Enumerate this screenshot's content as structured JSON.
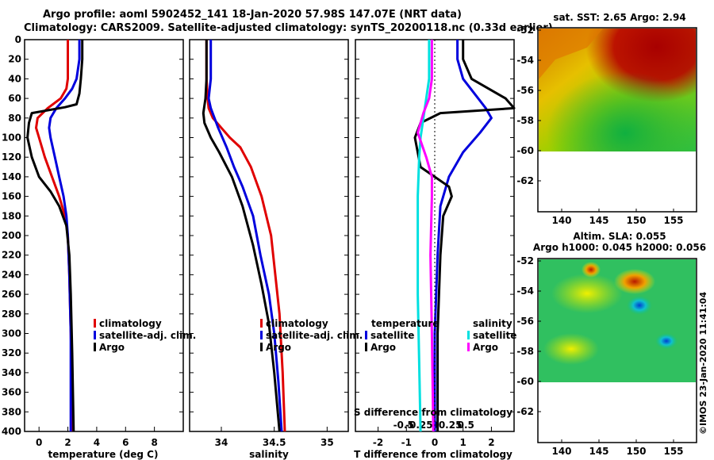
{
  "title": {
    "line1": "Argo profile: aoml 5902452_141 18-Jan-2020 57.98S 147.07E (NRT data)",
    "line2": "Climatology: CARS2009. Satellite-adjusted climatology: synTS_20200118.nc (0.33d earlier)"
  },
  "colors": {
    "climatology": "#e00000",
    "satellite": "#0000dd",
    "argo": "#000000",
    "sal_satellite": "#00e0e0",
    "sal_argo": "#ff00ff"
  },
  "chart_data": [
    {
      "type": "line",
      "panel": "temperature",
      "xlabel": "temperature (deg C)",
      "ylabel": "",
      "xlim": [
        -1,
        10
      ],
      "ylim": [
        400,
        0
      ],
      "xticks": [
        "0",
        "2",
        "4",
        "6",
        "8"
      ],
      "yticks": [
        "0",
        "20",
        "40",
        "60",
        "80",
        "100",
        "120",
        "140",
        "160",
        "180",
        "200",
        "220",
        "240",
        "260",
        "280",
        "300",
        "320",
        "340",
        "360",
        "380",
        "400"
      ],
      "legend": [
        "climatology",
        "satellite-adj. clim.",
        "Argo"
      ],
      "series": [
        {
          "name": "climatology",
          "color_key": "climatology",
          "x": [
            2.0,
            2.0,
            2.0,
            1.9,
            1.5,
            0.6,
            -0.1,
            -0.2,
            0.0,
            0.4,
            0.9,
            1.4,
            1.8,
            2.0,
            2.1,
            2.2,
            2.3,
            2.3
          ],
          "y": [
            0,
            20,
            40,
            50,
            60,
            70,
            80,
            90,
            100,
            120,
            140,
            160,
            180,
            200,
            240,
            300,
            350,
            400
          ]
        },
        {
          "name": "satellite-adj. clim.",
          "color_key": "satellite",
          "x": [
            2.8,
            2.8,
            2.6,
            2.3,
            1.8,
            1.2,
            0.8,
            0.7,
            0.8,
            1.1,
            1.4,
            1.7,
            1.9,
            2.0,
            2.1,
            2.2,
            2.2,
            2.2
          ],
          "y": [
            0,
            20,
            40,
            50,
            60,
            70,
            80,
            90,
            100,
            120,
            140,
            160,
            180,
            200,
            240,
            300,
            350,
            400
          ]
        },
        {
          "name": "Argo",
          "color_key": "argo",
          "x": [
            3.0,
            3.0,
            2.9,
            2.8,
            2.6,
            1.8,
            -0.5,
            -0.7,
            -0.8,
            -0.5,
            0.0,
            0.8,
            1.4,
            1.9,
            2.1,
            2.2,
            2.3,
            2.4
          ],
          "y": [
            0,
            20,
            40,
            55,
            66,
            69,
            75,
            85,
            100,
            120,
            140,
            155,
            170,
            190,
            220,
            260,
            320,
            400
          ]
        }
      ]
    },
    {
      "type": "line",
      "panel": "salinity",
      "xlabel": "salinity",
      "xlim": [
        33.7,
        35.2
      ],
      "ylim": [
        400,
        0
      ],
      "xticks": [
        "34",
        "34.5",
        "35"
      ],
      "legend": [
        "climatology",
        "satellite-adj. clim.",
        "Argo"
      ],
      "series": [
        {
          "name": "climatology",
          "color_key": "climatology",
          "x": [
            33.86,
            33.86,
            33.87,
            33.88,
            33.92,
            34.0,
            34.08,
            34.18,
            34.28,
            34.38,
            34.47,
            34.51,
            34.55,
            34.58,
            34.6
          ],
          "y": [
            0,
            40,
            60,
            70,
            80,
            90,
            100,
            110,
            130,
            160,
            200,
            240,
            280,
            340,
            400
          ]
        },
        {
          "name": "satellite-adj. clim.",
          "color_key": "satellite",
          "x": [
            33.9,
            33.9,
            33.88,
            33.9,
            33.97,
            34.05,
            34.12,
            34.2,
            34.3,
            34.37,
            34.45,
            34.5,
            34.54,
            34.57
          ],
          "y": [
            0,
            40,
            60,
            70,
            90,
            110,
            130,
            150,
            180,
            220,
            260,
            300,
            350,
            400
          ]
        },
        {
          "name": "Argo",
          "color_key": "argo",
          "x": [
            33.86,
            33.86,
            33.85,
            33.83,
            33.84,
            33.9,
            33.98,
            34.1,
            34.2,
            34.3,
            34.38,
            34.45,
            34.5,
            34.55
          ],
          "y": [
            0,
            40,
            60,
            75,
            85,
            100,
            115,
            140,
            170,
            210,
            250,
            290,
            340,
            400
          ]
        }
      ]
    },
    {
      "type": "line",
      "panel": "difference",
      "xlabel": "T difference from climatology",
      "xlabel2": "S difference from climatology",
      "xlim": [
        -2.8,
        2.8
      ],
      "ylim": [
        400,
        0
      ],
      "xticks": [
        "-2",
        "-1",
        "0",
        "1",
        "2"
      ],
      "xticks2": [
        "-0.5",
        "-0.25",
        "0",
        "0.25",
        "0.5"
      ],
      "legend_temperature_title": "temperature",
      "legend_temperature": [
        "satellite",
        "Argo"
      ],
      "legend_salinity_title": "salinity",
      "legend_salinity": [
        "satellite",
        "Argo"
      ],
      "series": [
        {
          "name": "T satellite",
          "color_key": "satellite",
          "x": [
            0.8,
            0.8,
            1.0,
            1.4,
            1.8,
            2.0,
            1.6,
            1.0,
            0.5,
            0.2,
            0.1,
            0.0,
            0.0
          ],
          "y": [
            0,
            20,
            40,
            55,
            70,
            80,
            95,
            115,
            140,
            170,
            220,
            300,
            400
          ]
        },
        {
          "name": "T Argo",
          "color_key": "argo",
          "x": [
            1.0,
            1.0,
            1.3,
            2.5,
            2.8,
            0.2,
            -0.5,
            -0.7,
            -0.5,
            0.5,
            0.6,
            0.3,
            0.2,
            0.1,
            0.1
          ],
          "y": [
            0,
            20,
            40,
            60,
            70,
            75,
            85,
            100,
            130,
            150,
            160,
            180,
            220,
            300,
            400
          ]
        },
        {
          "name": "S satellite",
          "color_key": "sal_satellite",
          "x": [
            -0.2,
            -0.2,
            -0.3,
            -0.4,
            -0.5,
            -0.55,
            -0.6,
            -0.6,
            -0.6,
            -0.55,
            -0.5
          ],
          "y": [
            0,
            40,
            60,
            80,
            100,
            120,
            160,
            200,
            260,
            330,
            400
          ]
        },
        {
          "name": "S Argo",
          "color_key": "sal_argo",
          "x": [
            -0.1,
            -0.1,
            -0.2,
            -0.4,
            -0.6,
            -0.3,
            -0.1,
            -0.1,
            -0.15,
            -0.1,
            -0.05
          ],
          "y": [
            0,
            40,
            60,
            75,
            95,
            120,
            140,
            160,
            220,
            300,
            400
          ]
        }
      ]
    }
  ],
  "maps": {
    "sst": {
      "title": "sat. SST: 2.65 Argo: 2.94",
      "yticks": [
        "-52",
        "-54",
        "-56",
        "-58",
        "-60",
        "-62"
      ],
      "xticks": [
        "140",
        "145",
        "150",
        "155"
      ]
    },
    "sla": {
      "title1": "Altim. SLA: 0.055",
      "title2": "Argo h1000: 0.045 h2000: 0.056",
      "yticks": [
        "-52",
        "-54",
        "-56",
        "-58",
        "-60",
        "-62"
      ],
      "xticks": [
        "140",
        "145",
        "150",
        "155"
      ]
    }
  },
  "credit": "©IMOS 23-Jan-2020 11:41:04"
}
